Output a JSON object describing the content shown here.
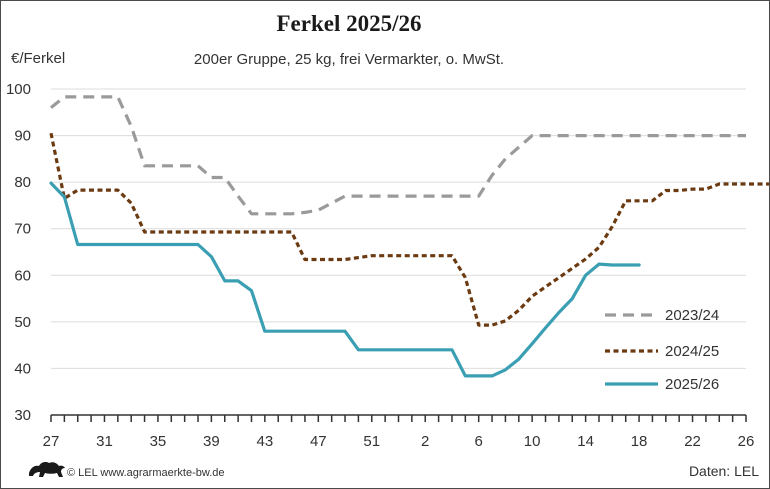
{
  "chart_data": {
    "type": "line",
    "title": "Ferkel 2025/26",
    "subtitle": "200er Gruppe, 25 kg, frei Vermarkter, o. MwSt.",
    "ylabel": "€/Ferkel",
    "xlabel": "",
    "ylim": [
      30,
      100
    ],
    "yticks": [
      30,
      40,
      50,
      60,
      70,
      80,
      90,
      100
    ],
    "xtick_labels": [
      "27",
      "31",
      "35",
      "39",
      "43",
      "47",
      "51",
      "2",
      "6",
      "10",
      "14",
      "18",
      "22",
      "26"
    ],
    "grid": "horizontal",
    "legend_position": "bottom-right",
    "series": [
      {
        "name": "2023/24",
        "color": "#9a9a9a",
        "style": "dashed",
        "values": [
          96,
          98.3,
          98.3,
          98.3,
          98.3,
          98.3,
          92,
          83.5,
          83.5,
          83.5,
          83.5,
          83.5,
          81,
          81,
          77,
          73.2,
          73.2,
          73.2,
          73.2,
          73.5,
          74,
          75.5,
          77,
          77,
          77,
          77,
          77,
          77,
          77,
          77,
          77,
          77,
          77,
          81.5,
          85,
          87.5,
          90,
          90,
          90,
          90,
          90,
          90,
          90,
          90,
          90,
          90,
          90,
          90,
          90,
          90,
          90,
          90,
          90
        ]
      },
      {
        "name": "2024/25",
        "color": "#6b3a10",
        "style": "dotted",
        "values": [
          90.5,
          76.5,
          78.3,
          78.3,
          78.3,
          78.3,
          75.5,
          69.3,
          69.3,
          69.3,
          69.3,
          69.3,
          69.3,
          69.3,
          69.3,
          69.3,
          69.3,
          69.3,
          69.3,
          63.4,
          63.4,
          63.4,
          63.4,
          63.8,
          64.2,
          64.2,
          64.2,
          64.2,
          64.2,
          64.2,
          64.2,
          59.5,
          49.3,
          49.3,
          50.2,
          52.5,
          55.5,
          57.5,
          59.5,
          61.5,
          63.5,
          66,
          70.5,
          76,
          76,
          76,
          78.2,
          78.2,
          78.5,
          78.5,
          79.6,
          79.6,
          79.6,
          79.6,
          79.6
        ]
      },
      {
        "name": "2025/26",
        "color": "#3a9fb3",
        "style": "solid",
        "values": [
          79.8,
          76.8,
          66.6,
          66.6,
          66.6,
          66.6,
          66.6,
          66.6,
          66.6,
          66.6,
          66.6,
          66.6,
          64,
          58.8,
          58.8,
          56.7,
          48,
          48,
          48,
          48,
          48,
          48,
          48,
          44,
          44,
          44,
          44,
          44,
          44,
          44,
          44,
          38.4,
          38.4,
          38.4,
          39.7,
          42,
          45.3,
          48.7,
          52,
          55,
          60,
          62.4,
          62.2,
          62.2,
          62.2
        ]
      }
    ]
  },
  "footer": {
    "credit": "© LEL www.agrarmaerkte-bw.de",
    "source": "Daten: LEL",
    "logo_icon": "lion-logo-icon"
  }
}
